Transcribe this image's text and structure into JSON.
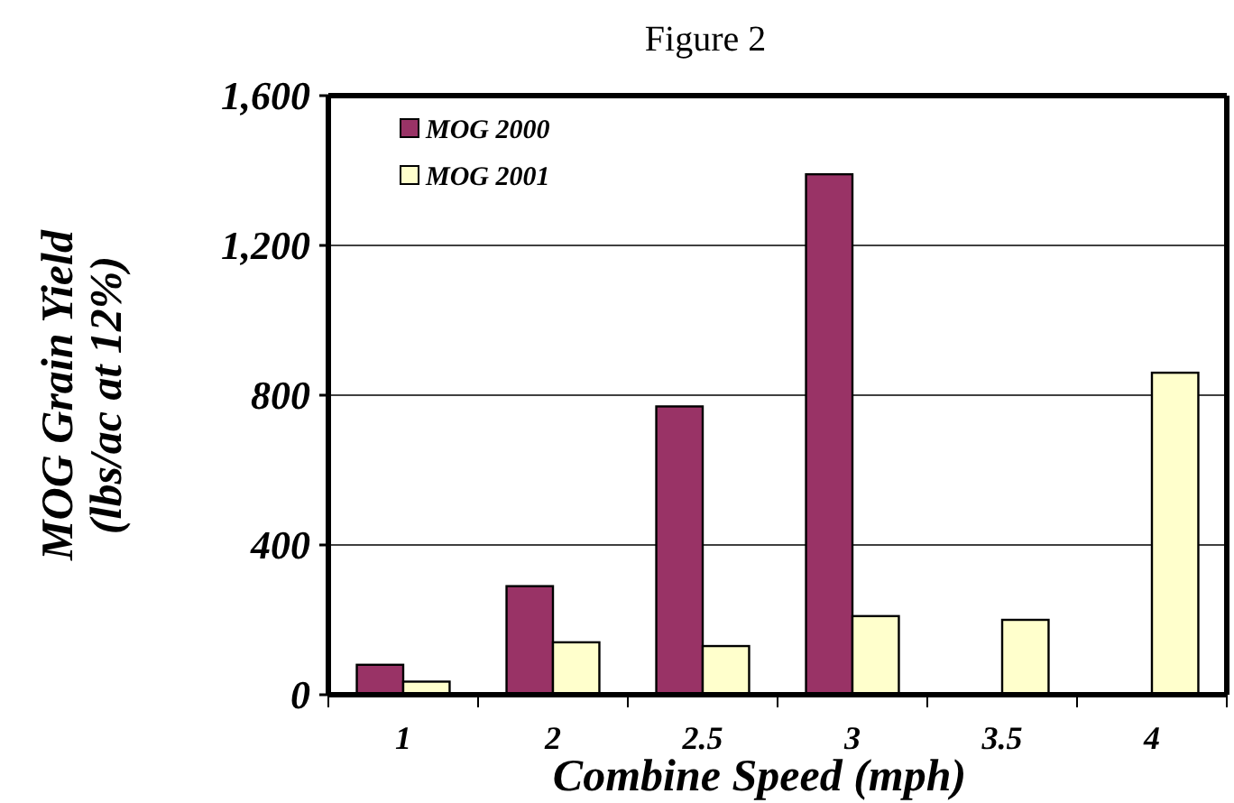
{
  "chart_data": {
    "type": "bar",
    "title": "Figure 2",
    "xlabel": "Combine Speed (mph)",
    "ylabel": "MOG Grain Yield\n(lbs/ac at 12%)",
    "categories": [
      "1",
      "2",
      "2.5",
      "3",
      "3.5",
      "4"
    ],
    "series": [
      {
        "name": "MOG 2000",
        "color": "#993366",
        "values": [
          80,
          290,
          770,
          1390,
          0,
          0
        ]
      },
      {
        "name": "MOG 2001",
        "color": "#ffffcc",
        "values": [
          35,
          140,
          130,
          210,
          200,
          860
        ]
      }
    ],
    "ylim": [
      0,
      1600
    ],
    "yticks": [
      0,
      {
        "value": 400,
        "label": "400"
      },
      {
        "value": 800,
        "label": "800"
      },
      {
        "value": 1200,
        "label": "1,200"
      },
      {
        "value": 1600,
        "label": "1,600"
      }
    ],
    "grid": "y",
    "legend": "top left"
  }
}
